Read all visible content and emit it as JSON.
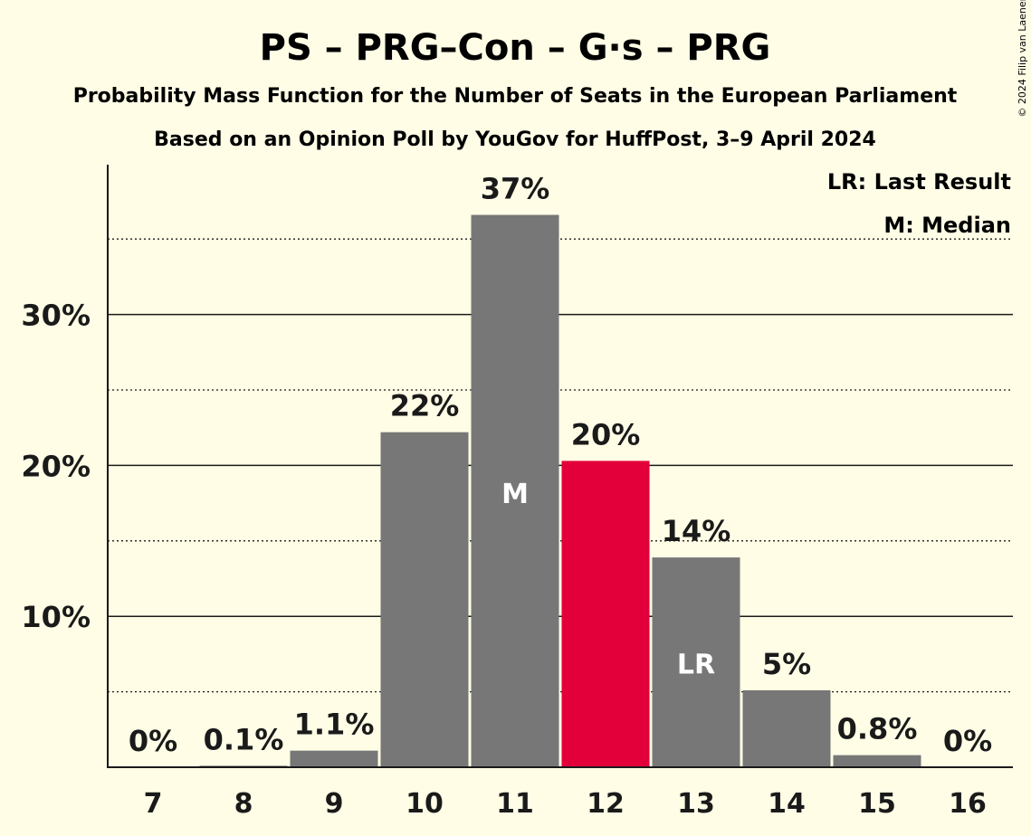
{
  "chart_data": {
    "type": "bar",
    "title": "PS – PRG–Con – G·s – PRG",
    "subtitle": "Probability Mass Function for the Number of Seats in the European Parliament",
    "subtitle2": "Based on an Opinion Poll by YouGov for HuffPost, 3–9 April 2024",
    "xlabel": "",
    "ylabel": "",
    "categories": [
      "7",
      "8",
      "9",
      "10",
      "11",
      "12",
      "13",
      "14",
      "15",
      "16"
    ],
    "values": [
      0,
      0.1,
      1.1,
      22.2,
      36.6,
      20.3,
      13.9,
      5.1,
      0.8,
      0
    ],
    "value_labels": [
      "0%",
      "0.1%",
      "1.1%",
      "22%",
      "37%",
      "20%",
      "14%",
      "5%",
      "0.8%",
      "0%"
    ],
    "ylim": [
      0,
      39.9
    ],
    "yticks": [
      10,
      20,
      30
    ],
    "ytick_labels": [
      "10%",
      "20%",
      "30%"
    ],
    "minor_gridlines": [
      5,
      15,
      25,
      35
    ],
    "grid": true,
    "median_category": "11",
    "median_marker": "M",
    "last_result_category": "13",
    "last_result_marker": "LR",
    "highlight_category": "12",
    "colors": {
      "bar": "#777777",
      "highlight": "#e3003a",
      "background": "#fffde6",
      "text": "#1a1a1a"
    },
    "legend": {
      "position": "top-right",
      "entries": [
        "LR: Last Result",
        "M: Median"
      ]
    },
    "copyright": "© 2024 Filip van Laenen"
  }
}
